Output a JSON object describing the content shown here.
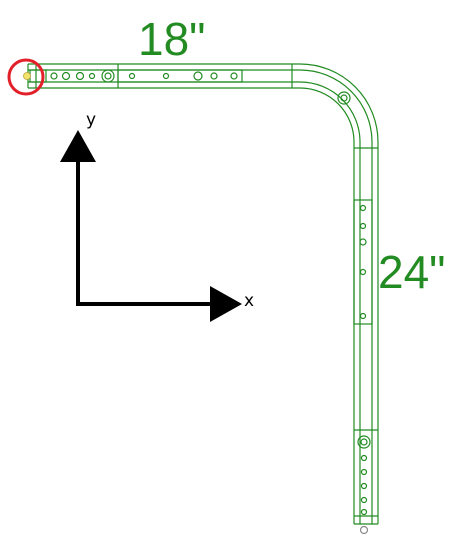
{
  "dimensions": {
    "horizontal_length": "18\"",
    "vertical_length": "24\""
  },
  "axes": {
    "x_label": "x",
    "y_label": "y"
  },
  "colors": {
    "track_green": "#228b22",
    "highlight_red": "#e3202a",
    "axis_black": "#000000",
    "endpoint_yellow": "#f2e36b"
  }
}
